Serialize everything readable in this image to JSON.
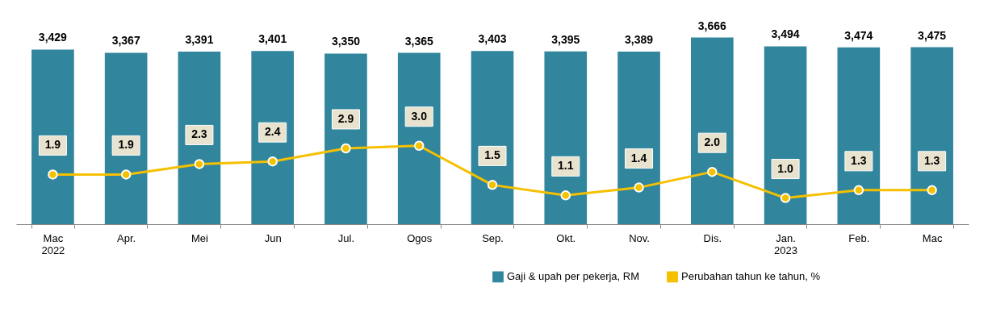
{
  "chart_data": {
    "type": "bar",
    "categories": [
      "Mac 2022",
      "Apr.",
      "Mei",
      "Jun",
      "Jul.",
      "Ogos",
      "Sep.",
      "Okt.",
      "Nov.",
      "Dis.",
      "Jan. 2023",
      "Feb.",
      "Mac"
    ],
    "series": [
      {
        "name": "Gaji & upah per pekerja, RM",
        "color": "#31859c",
        "values": [
          3429,
          3367,
          3391,
          3401,
          3350,
          3365,
          3403,
          3395,
          3389,
          3666,
          3494,
          3474,
          3475
        ],
        "value_labels": [
          "3,429",
          "3,367",
          "3,391",
          "3,401",
          "3,350",
          "3,365",
          "3,403",
          "3,395",
          "3,389",
          "3,666",
          "3,494",
          "3,474",
          "3,475"
        ]
      },
      {
        "name": "Perubahan tahun ke tahun, %",
        "type": "line",
        "axis": "y2",
        "color": "#f5c000",
        "values": [
          1.9,
          1.9,
          2.3,
          2.4,
          2.9,
          3.0,
          1.5,
          1.1,
          1.4,
          2.0,
          1.0,
          1.3,
          1.3
        ],
        "value_labels": [
          "1.9",
          "1.9",
          "2.3",
          "2.4",
          "2.9",
          "3.0",
          "1.5",
          "1.1",
          "1.4",
          "2.0",
          "1.0",
          "1.3",
          "1.3"
        ]
      }
    ],
    "marker": "circle",
    "legend": "bottom right"
  }
}
